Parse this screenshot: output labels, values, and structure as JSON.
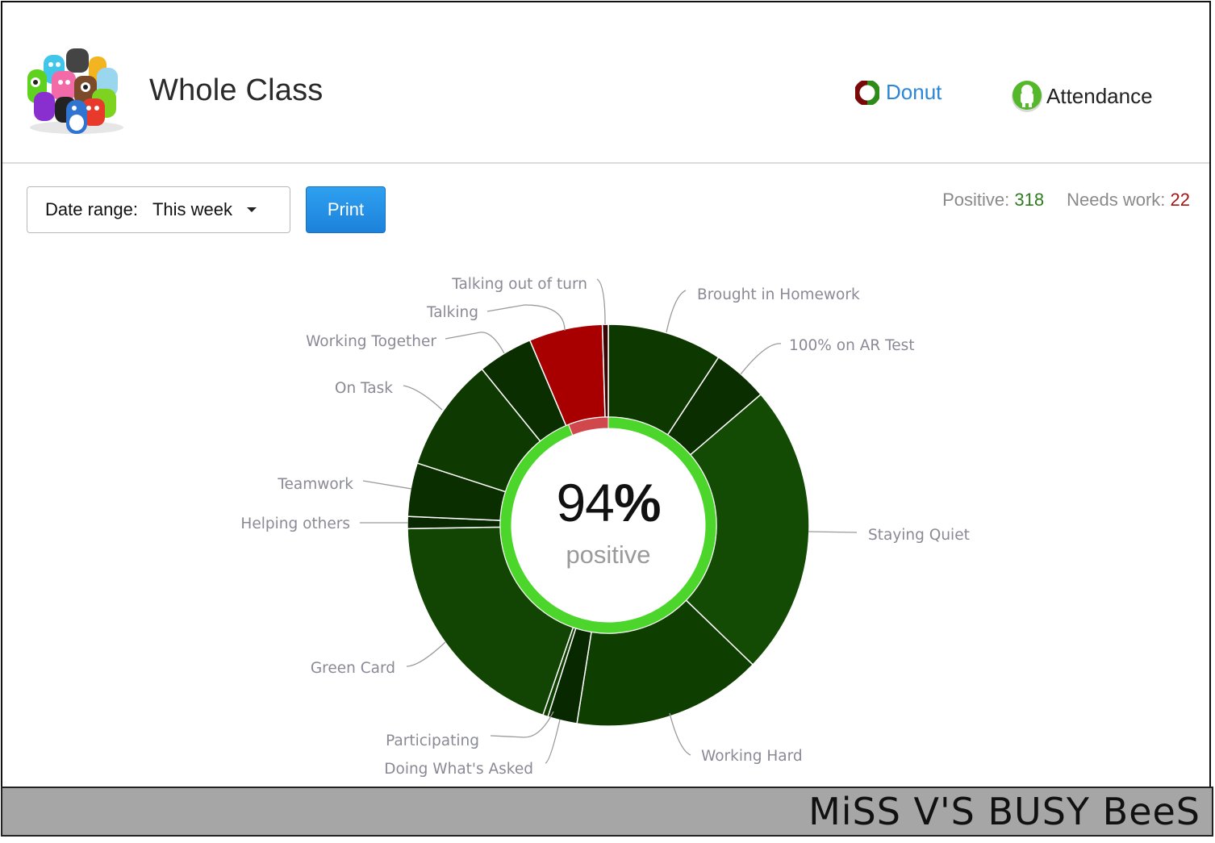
{
  "header": {
    "title": "Whole Class",
    "logo": "class-monsters-logo",
    "nav": [
      {
        "label": "Donut",
        "icon": "donut-icon",
        "color": "#2b86d9"
      },
      {
        "label": "Attendance",
        "icon": "attendance-icon",
        "color": "#222222"
      }
    ]
  },
  "toolbar": {
    "date_range_label": "Date range:",
    "date_range_value": "This week",
    "print_label": "Print"
  },
  "stats": {
    "positive_label": "Positive:",
    "positive_value": "318",
    "needs_work_label": "Needs work:",
    "needs_work_value": "22",
    "positive_color": "#2e7d1f",
    "needs_work_color": "#a31515"
  },
  "center": {
    "percent_number": "94",
    "percent_sign": "%",
    "caption": "positive"
  },
  "footer": {
    "brand": "MiSS V'S BUSY BeeS"
  },
  "chart_data": {
    "type": "pie",
    "variant": "donut",
    "title": "Whole Class",
    "center_text": "94% positive",
    "totals": {
      "positive": 318,
      "needs_work": 22
    },
    "legend": "none (leader-line labels)",
    "slices": [
      {
        "label": "Brought in Homework",
        "type": "positive",
        "start_deg": 0,
        "end_deg": 33.3,
        "approx_count": 31,
        "color": "#0d3800"
      },
      {
        "label": "100% on AR Test",
        "type": "positive",
        "start_deg": 33.3,
        "end_deg": 49.4,
        "approx_count": 15,
        "color": "#0a2e00"
      },
      {
        "label": "Staying Quiet",
        "type": "positive",
        "start_deg": 49.4,
        "end_deg": 134,
        "approx_count": 80,
        "color": "#134a04"
      },
      {
        "label": "Working Hard",
        "type": "positive",
        "start_deg": 134,
        "end_deg": 189,
        "approx_count": 52,
        "color": "#0f3e01"
      },
      {
        "label": "Doing What's Asked",
        "type": "positive",
        "start_deg": 189,
        "end_deg": 197.5,
        "approx_count": 8,
        "color": "#082800"
      },
      {
        "label": "Participating",
        "type": "positive",
        "start_deg": 197.5,
        "end_deg": 199,
        "approx_count": 1,
        "color": "#0f3e01"
      },
      {
        "label": "Green Card",
        "type": "positive",
        "start_deg": 199,
        "end_deg": 269,
        "approx_count": 66,
        "color": "#124503"
      },
      {
        "label": "Helping others",
        "type": "positive",
        "start_deg": 269,
        "end_deg": 272.5,
        "approx_count": 3,
        "color": "#082800"
      },
      {
        "label": "Teamwork",
        "type": "positive",
        "start_deg": 272.5,
        "end_deg": 288,
        "approx_count": 15,
        "color": "#0a2e00"
      },
      {
        "label": "On Task",
        "type": "positive",
        "start_deg": 288,
        "end_deg": 321,
        "approx_count": 31,
        "color": "#0e3a01"
      },
      {
        "label": "Working Together",
        "type": "positive",
        "start_deg": 321,
        "end_deg": 337,
        "approx_count": 15,
        "color": "#0a2e00"
      },
      {
        "label": "Talking",
        "type": "needs_work",
        "start_deg": 337,
        "end_deg": 358.3,
        "approx_count": 20,
        "color": "#a80000"
      },
      {
        "label": "Talking out of turn",
        "type": "needs_work",
        "start_deg": 358.3,
        "end_deg": 360,
        "approx_count": 2,
        "color": "#3a0505"
      }
    ],
    "inner_ring": [
      {
        "label": "positive",
        "value": 94,
        "color": "#4cd62b"
      },
      {
        "label": "needs work",
        "value": 6,
        "color": "#d0474c"
      }
    ]
  }
}
